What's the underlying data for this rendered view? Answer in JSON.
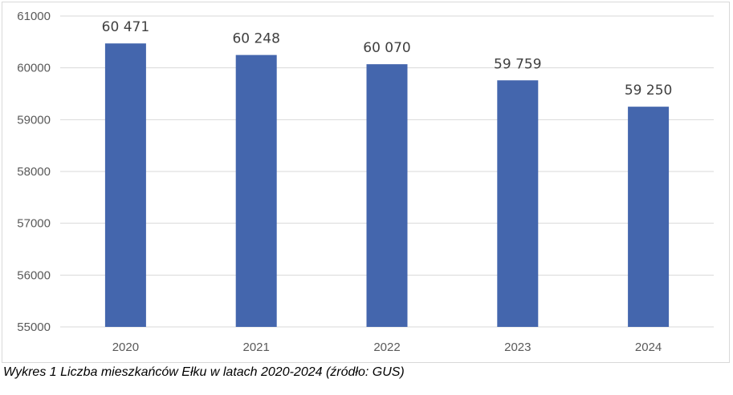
{
  "chart_data": {
    "type": "bar",
    "categories": [
      "2020",
      "2021",
      "2022",
      "2023",
      "2024"
    ],
    "values": [
      60471,
      60248,
      60070,
      59759,
      59250
    ],
    "data_labels": [
      "60 471",
      "60 248",
      "60 070",
      "59 759",
      "59 250"
    ],
    "y_ticks": [
      "55000",
      "56000",
      "57000",
      "58000",
      "59000",
      "60000",
      "61000"
    ],
    "y_tick_values": [
      55000,
      56000,
      57000,
      58000,
      59000,
      60000,
      61000
    ],
    "ylim": [
      55000,
      61000
    ],
    "grid": true,
    "legend": "none",
    "bar_color": "#4466ad",
    "grid_color": "#d9d9d9"
  },
  "caption": "Wykres 1 Liczba mieszkańców Ełku w latach 2020-2024 (źródło: GUS)"
}
